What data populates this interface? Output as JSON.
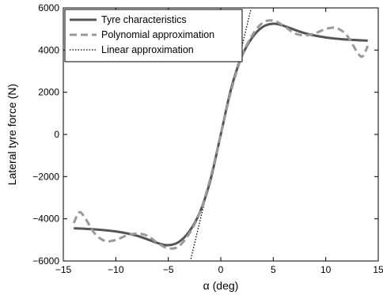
{
  "chart_data": {
    "type": "line",
    "xlabel": "α (deg)",
    "ylabel": "Lateral tyre force (N)",
    "xlim": [
      -15,
      15
    ],
    "ylim": [
      -6000,
      6000
    ],
    "xticks": [
      -15,
      -10,
      -5,
      0,
      5,
      10,
      15
    ],
    "yticks": [
      -6000,
      -4000,
      -2000,
      0,
      2000,
      4000,
      6000
    ],
    "xtick_labels": [
      "−15",
      "−10",
      "−5",
      "0",
      "5",
      "10",
      "15"
    ],
    "ytick_labels": [
      "−6000",
      "−4000",
      "−2000",
      "0",
      "2000",
      "4000",
      "6000"
    ],
    "grid": false,
    "legend_position": "top-left",
    "series": [
      {
        "name": "Tyre characteristics",
        "style": "solid",
        "color": "#555555",
        "x": [
          -14,
          -12,
          -10,
          -8,
          -6,
          -5,
          -4,
          -3,
          -2,
          -1,
          0,
          1,
          2,
          3,
          4,
          5,
          6,
          8,
          10,
          12,
          14
        ],
        "y": [
          -4450,
          -4500,
          -4600,
          -4800,
          -5150,
          -5250,
          -5100,
          -4600,
          -3700,
          -2200,
          0,
          2200,
          3700,
          4600,
          5100,
          5250,
          5150,
          4800,
          4600,
          4500,
          4450
        ]
      },
      {
        "name": "Polynomial approximation",
        "style": "dashed",
        "color": "#999999",
        "x": [
          -14,
          -13.5,
          -13,
          -12,
          -11,
          -10,
          -9,
          -8,
          -7,
          -6,
          -5,
          -4,
          -3,
          -2,
          -1,
          0,
          1,
          2,
          3,
          4,
          5,
          6,
          7,
          8,
          9,
          10,
          11,
          12,
          13,
          13.5,
          14
        ],
        "y": [
          -4200,
          -3700,
          -3900,
          -4700,
          -5050,
          -5000,
          -4800,
          -4700,
          -4800,
          -5150,
          -5400,
          -5300,
          -4700,
          -3700,
          -2100,
          0,
          2100,
          3700,
          4700,
          5300,
          5400,
          5150,
          4800,
          4700,
          4800,
          5000,
          5050,
          4700,
          3900,
          3700,
          4200
        ]
      },
      {
        "name": "Linear approximation",
        "style": "dotted",
        "color": "#000000",
        "x": [
          -2.85,
          2.85
        ],
        "y": [
          -5900,
          5900
        ]
      }
    ]
  }
}
